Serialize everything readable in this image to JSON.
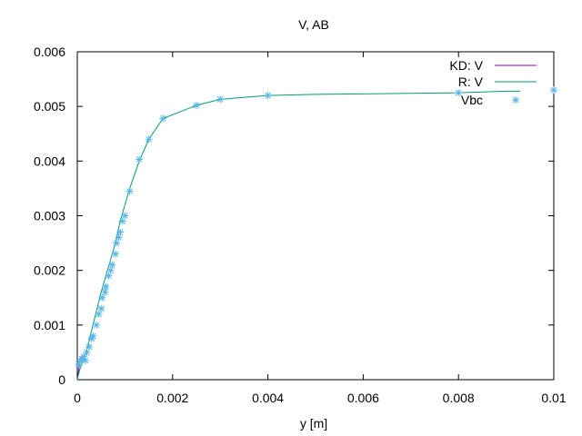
{
  "chart_data": {
    "type": "line",
    "title": "V, AB",
    "xlabel": "y [m]",
    "ylabel": "",
    "xlim": [
      0,
      0.01
    ],
    "ylim": [
      0,
      0.006
    ],
    "x_ticks": [
      "0",
      "0.002",
      "0.004",
      "0.006",
      "0.008",
      "0.01"
    ],
    "x_tick_values": [
      0,
      0.002,
      0.004,
      0.006,
      0.008,
      0.01
    ],
    "y_ticks": [
      "0",
      "0.001",
      "0.002",
      "0.003",
      "0.004",
      "0.005",
      "0.006"
    ],
    "y_tick_values": [
      0,
      0.001,
      0.002,
      0.003,
      0.004,
      0.005,
      0.006
    ],
    "grid": false,
    "legend_position": "top-right",
    "series": [
      {
        "name": "KD: V",
        "style": "line",
        "color": "#9400d3",
        "x": [
          0,
          2e-05,
          4e-05,
          6e-05
        ],
        "y": [
          0,
          0.00012,
          0.00024,
          0.00034
        ]
      },
      {
        "name": "R: V",
        "style": "line",
        "color": "#009e73",
        "x": [
          0,
          5e-05,
          0.0001,
          0.0002,
          0.0003,
          0.0004,
          0.0005,
          0.0006,
          0.0007,
          0.0008,
          0.0009,
          0.001,
          0.0011,
          0.0013,
          0.0015,
          0.0018,
          0.0025,
          0.003,
          0.004,
          0.005,
          0.006,
          0.007,
          0.008,
          0.009,
          0.0093
        ],
        "y": [
          0,
          0.00018,
          0.0003,
          0.00055,
          0.0009,
          0.00125,
          0.0016,
          0.0019,
          0.0022,
          0.0025,
          0.0029,
          0.0032,
          0.0035,
          0.004,
          0.0044,
          0.00478,
          0.00502,
          0.00513,
          0.0052,
          0.00522,
          0.00523,
          0.00524,
          0.00525,
          0.00528,
          0.00528
        ]
      },
      {
        "name": "Vbc",
        "style": "points",
        "color": "#56b4e9",
        "x": [
          3e-05,
          6e-05,
          0.0001,
          0.00013,
          0.00017,
          0.0002,
          0.00025,
          0.0003,
          0.00033,
          0.0004,
          0.00045,
          0.0005,
          0.00052,
          0.00058,
          0.0006,
          0.00066,
          0.0007,
          0.00073,
          0.0008,
          0.00082,
          0.00087,
          0.0009,
          0.00095,
          0.001,
          0.0011,
          0.0013,
          0.0015,
          0.0018,
          0.0025,
          0.003,
          0.004,
          0.008,
          0.01
        ],
        "y": [
          0.00028,
          0.00035,
          0.00038,
          0.00042,
          0.00035,
          0.0005,
          0.0006,
          0.00075,
          0.0008,
          0.001,
          0.0012,
          0.0013,
          0.0015,
          0.0016,
          0.0017,
          0.0019,
          0.002,
          0.0021,
          0.0023,
          0.0025,
          0.0026,
          0.0027,
          0.0029,
          0.003,
          0.00345,
          0.00403,
          0.0044,
          0.00478,
          0.00502,
          0.00513,
          0.0052,
          0.00525,
          0.0053
        ]
      }
    ]
  }
}
